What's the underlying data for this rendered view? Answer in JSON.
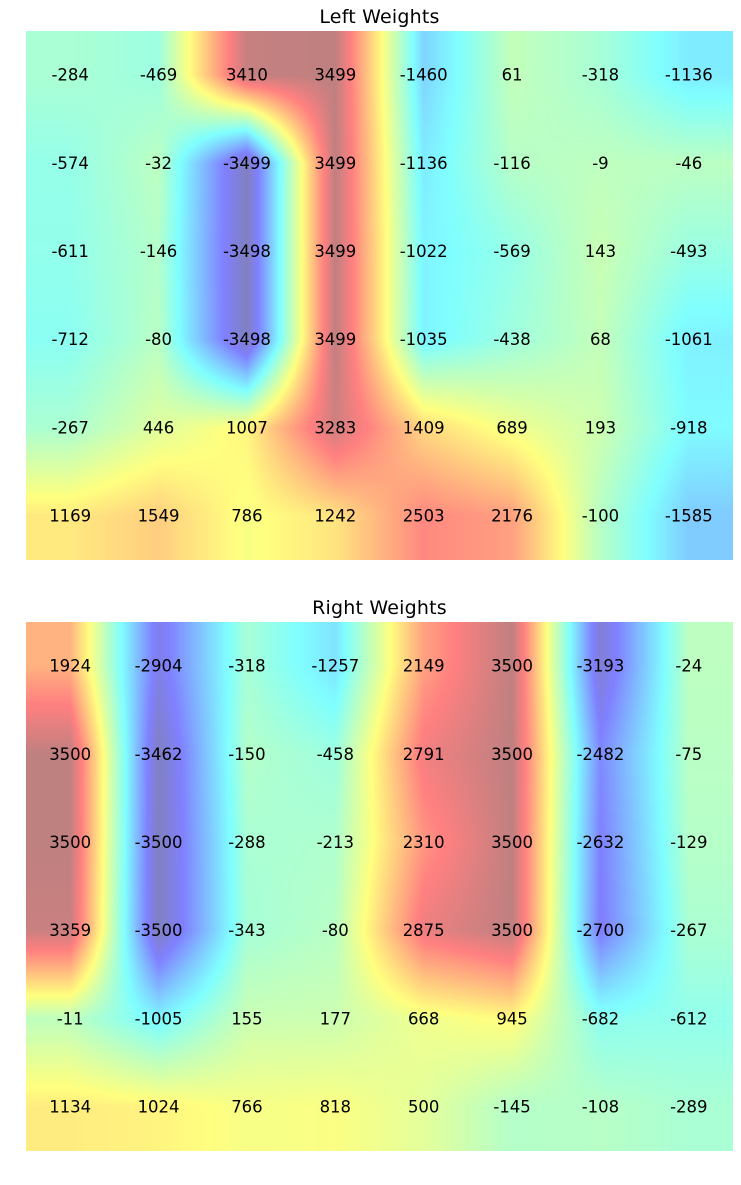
{
  "chart_data": [
    {
      "type": "heatmap",
      "title": "Left Weights",
      "rows": 6,
      "cols": 8,
      "colormap": "jet",
      "vmin": -3500,
      "vmax": 3500,
      "smoothing": "bilinear",
      "grid": false,
      "values": [
        [
          -284,
          -469,
          3410,
          3499,
          -1460,
          61,
          -318,
          -1136
        ],
        [
          -574,
          -32,
          -3499,
          3499,
          -1136,
          -116,
          -9,
          -46
        ],
        [
          -611,
          -146,
          -3498,
          3499,
          -1022,
          -569,
          143,
          -493
        ],
        [
          -712,
          -80,
          -3498,
          3499,
          -1035,
          -438,
          68,
          -1061
        ],
        [
          -267,
          446,
          1007,
          3283,
          1409,
          689,
          193,
          -918
        ],
        [
          1169,
          1549,
          786,
          1242,
          2503,
          2176,
          -100,
          -1585
        ]
      ]
    },
    {
      "type": "heatmap",
      "title": "Right Weights",
      "rows": 6,
      "cols": 8,
      "colormap": "jet",
      "vmin": -3500,
      "vmax": 3500,
      "smoothing": "bilinear",
      "grid": false,
      "values": [
        [
          1924,
          -2904,
          -318,
          -1257,
          2149,
          3500,
          -3193,
          -24
        ],
        [
          3500,
          -3462,
          -150,
          -458,
          2791,
          3500,
          -2482,
          -75
        ],
        [
          3500,
          -3500,
          -288,
          -213,
          2310,
          3500,
          -2632,
          -129
        ],
        [
          3359,
          -3500,
          -343,
          -80,
          2875,
          3500,
          -2700,
          -267
        ],
        [
          -11,
          -1005,
          155,
          177,
          668,
          945,
          -682,
          -612
        ],
        [
          1134,
          1024,
          766,
          818,
          500,
          -145,
          -108,
          -289
        ]
      ]
    }
  ]
}
